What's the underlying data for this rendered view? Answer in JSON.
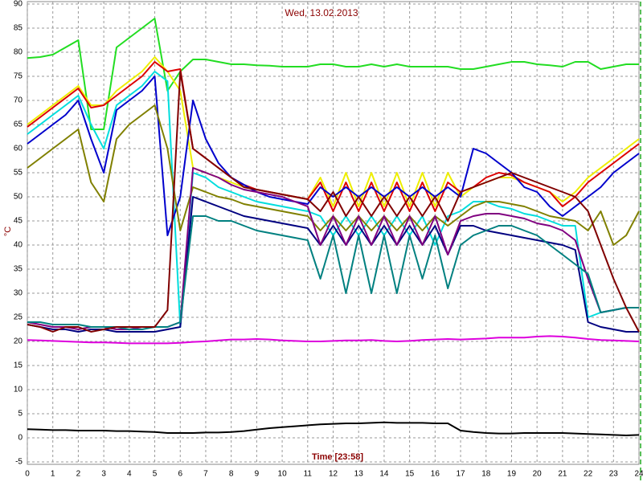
{
  "chart_data": {
    "type": "line",
    "title": "Wed, 13.02.2013",
    "xlabel": "Time [23:58]",
    "ylabel": "°C",
    "x": [
      0,
      0.5,
      1,
      1.5,
      2,
      2.5,
      3,
      3.5,
      4,
      4.5,
      5,
      5.5,
      6,
      6.5,
      7,
      7.5,
      8,
      8.5,
      9,
      9.5,
      10,
      10.5,
      11,
      11.5,
      12,
      12.5,
      13,
      13.5,
      14,
      14.5,
      15,
      15.5,
      16,
      16.5,
      17,
      17.5,
      18,
      18.5,
      19,
      19.5,
      20,
      20.5,
      21,
      21.5,
      22,
      22.5,
      23,
      23.5,
      24
    ],
    "xlim": [
      0,
      24
    ],
    "xticks": [
      0,
      1,
      2,
      3,
      4,
      5,
      6,
      7,
      8,
      9,
      10,
      11,
      12,
      13,
      14,
      15,
      16,
      17,
      18,
      19,
      20,
      21,
      22,
      23,
      24
    ],
    "ylim": [
      -5,
      90
    ],
    "yticks": [
      -5,
      0,
      5,
      10,
      15,
      20,
      25,
      30,
      35,
      40,
      45,
      50,
      55,
      60,
      65,
      70,
      75,
      80,
      85,
      90
    ],
    "grid": true,
    "series": [
      {
        "color": "#22dd22",
        "values": [
          78.8,
          79,
          79.5,
          81,
          82.5,
          64,
          64,
          81,
          83,
          85,
          87,
          72,
          76,
          78.5,
          78.5,
          78,
          77.5,
          77.5,
          77.3,
          77.2,
          77,
          77,
          77,
          77.5,
          77.5,
          77,
          77,
          77.5,
          77,
          77.5,
          77,
          77,
          77,
          77,
          76.5,
          76.5,
          77,
          77.5,
          78,
          78,
          77.5,
          77.3,
          77,
          78,
          78,
          76.5,
          77,
          77.5,
          77.5
        ]
      },
      {
        "color": "#eeee00",
        "values": [
          65,
          67,
          69,
          71,
          73,
          69,
          69,
          72,
          74,
          76,
          79,
          76,
          72,
          56,
          55,
          54,
          53,
          52,
          51.5,
          51,
          50.5,
          50,
          49.5,
          54,
          48,
          55,
          48,
          55,
          48,
          55,
          48,
          55,
          48,
          55,
          50,
          52,
          53,
          54,
          54,
          53,
          52,
          51,
          49,
          51,
          54,
          56,
          58,
          60,
          62
        ]
      },
      {
        "color": "#dd0000",
        "values": [
          64.5,
          66.5,
          68.5,
          70.5,
          72.5,
          68.5,
          69,
          71,
          73,
          75,
          78,
          76,
          76.5,
          60,
          58,
          56,
          54,
          52.5,
          51.5,
          51,
          50.5,
          50,
          49.5,
          53,
          47,
          53,
          47,
          53,
          47,
          53,
          47,
          53,
          47,
          53,
          51,
          52,
          54,
          55,
          54.5,
          53,
          52,
          51,
          48,
          50,
          53,
          55,
          57,
          59,
          61
        ]
      },
      {
        "color": "#00dddd",
        "values": [
          63,
          65,
          67,
          69,
          71,
          65,
          60,
          69,
          71,
          73,
          76,
          74,
          23,
          55,
          54,
          52,
          51,
          50,
          49,
          48.5,
          48,
          47.5,
          47,
          46,
          42,
          46,
          42,
          46,
          42,
          46,
          42,
          46,
          40,
          46,
          47,
          49,
          49,
          48,
          47.5,
          46.5,
          46,
          45,
          44,
          44,
          25,
          26,
          26.5,
          27,
          27
        ]
      },
      {
        "color": "#0000cc",
        "values": [
          61,
          63,
          65,
          67,
          70,
          62,
          55,
          68,
          70,
          72,
          75,
          42,
          50,
          70,
          62,
          57,
          54,
          52.5,
          51,
          50,
          49.5,
          49,
          48.5,
          52,
          50,
          52,
          50,
          52,
          50,
          52,
          50,
          52,
          50,
          52,
          50,
          60,
          59,
          57,
          55,
          52,
          51,
          48,
          46,
          48,
          50,
          52,
          55,
          57,
          59
        ]
      },
      {
        "color": "#000080",
        "values": [
          23.5,
          23,
          22.5,
          22.5,
          22,
          22.5,
          22.5,
          22,
          22,
          22,
          22,
          22.5,
          23,
          50,
          49,
          48,
          47,
          46,
          45.5,
          45,
          44.5,
          44,
          43.5,
          40,
          44,
          40,
          44,
          40,
          44,
          40,
          44,
          40,
          44,
          38,
          44,
          44,
          43,
          42.5,
          42,
          41.5,
          41,
          40.5,
          40,
          39,
          24,
          23,
          22.5,
          22,
          22
        ]
      },
      {
        "color": "#808000",
        "values": [
          56,
          58,
          60,
          62,
          64,
          53,
          49,
          62,
          65,
          67,
          69,
          60,
          43,
          52,
          51,
          50,
          49.5,
          48.5,
          48,
          47.5,
          47,
          46.5,
          46,
          43,
          46,
          43,
          46,
          43,
          46,
          43,
          46,
          43,
          46,
          44,
          46,
          48,
          49,
          49,
          48.5,
          48,
          47,
          46,
          45.5,
          45,
          43,
          47,
          40,
          42,
          47
        ]
      },
      {
        "color": "#800080",
        "values": [
          24,
          23.5,
          23,
          23,
          22.5,
          23,
          23,
          22.5,
          22.5,
          23,
          23,
          23,
          24,
          56,
          55,
          54,
          52.5,
          51.5,
          51,
          50.5,
          50,
          49,
          48,
          40,
          46,
          40,
          46,
          40,
          46,
          40,
          46,
          40,
          46,
          38,
          45,
          46,
          46.5,
          46.5,
          46,
          45.5,
          44.5,
          44,
          43,
          41,
          33,
          26,
          26.5,
          27,
          27
        ]
      },
      {
        "color": "#008080",
        "values": [
          24,
          24,
          23.5,
          23.5,
          23.5,
          23,
          23,
          23,
          22.5,
          22.5,
          23,
          23,
          24,
          46,
          46,
          45,
          45,
          44,
          43,
          42.5,
          42,
          41.5,
          41,
          33,
          42,
          30,
          42,
          30,
          42,
          30,
          42,
          33,
          42,
          31,
          40,
          42,
          43,
          44,
          44,
          43,
          42,
          40,
          38,
          36,
          34,
          26,
          26.5,
          27,
          27
        ]
      },
      {
        "color": "#800000",
        "values": [
          23.5,
          23,
          22,
          23,
          23,
          22,
          22.5,
          23,
          23,
          23,
          23,
          26.5,
          76,
          60,
          58,
          56,
          54,
          52,
          51.5,
          51,
          50.5,
          50,
          49.5,
          47,
          51,
          46,
          50,
          46,
          50,
          46,
          50,
          46,
          50,
          45,
          51,
          52,
          53,
          54,
          55,
          54,
          53,
          52,
          51,
          50,
          47,
          40,
          33,
          27,
          22
        ]
      },
      {
        "color": "#dd00dd",
        "values": [
          20.3,
          20.2,
          20.1,
          20,
          19.9,
          19.8,
          19.8,
          19.7,
          19.6,
          19.6,
          19.6,
          19.6,
          19.7,
          19.9,
          20,
          20.2,
          20.4,
          20.4,
          20.5,
          20.4,
          20.2,
          20.1,
          20,
          20,
          20.1,
          20.2,
          20.2,
          20.3,
          20.1,
          20,
          20.1,
          20.3,
          20.4,
          20.5,
          20.4,
          20.5,
          20.6,
          20.8,
          20.8,
          20.8,
          21,
          21.1,
          21,
          20.8,
          20.5,
          20.3,
          20.2,
          20.1,
          20
        ]
      },
      {
        "color": "#000000",
        "values": [
          1.8,
          1.7,
          1.6,
          1.6,
          1.5,
          1.5,
          1.5,
          1.4,
          1.4,
          1.3,
          1.2,
          1,
          1,
          1,
          1.1,
          1.1,
          1.2,
          1.4,
          1.7,
          2,
          2.2,
          2.4,
          2.6,
          2.8,
          2.9,
          3,
          3,
          3.1,
          3.2,
          3.1,
          3.1,
          3.1,
          3,
          3,
          1.5,
          1.2,
          1,
          0.9,
          0.9,
          1,
          1,
          1,
          1,
          0.9,
          0.8,
          0.7,
          0.6,
          0.5,
          0.6
        ]
      }
    ]
  }
}
